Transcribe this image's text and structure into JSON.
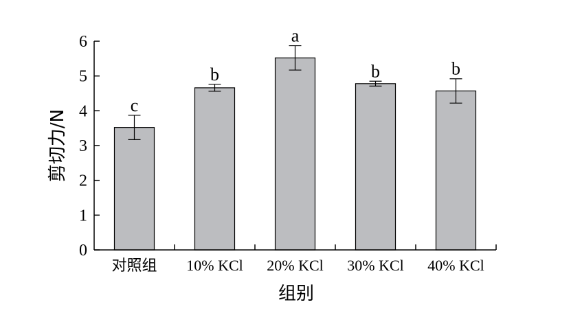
{
  "chart_data": {
    "type": "bar",
    "categories": [
      "对照组",
      "10% KCl",
      "20% KCl",
      "30% KCl",
      "40% KCl"
    ],
    "values": [
      3.52,
      4.66,
      5.52,
      4.78,
      4.57
    ],
    "error": [
      0.35,
      0.1,
      0.35,
      0.07,
      0.35
    ],
    "significance": [
      "c",
      "b",
      "a",
      "b",
      "b"
    ],
    "xlabel": "组别",
    "ylabel": "剪切力/N",
    "ylim": [
      0,
      6
    ],
    "yticks": [
      "0",
      "1",
      "2",
      "3",
      "4",
      "5",
      "6"
    ],
    "bar_color": "#bcbdc0",
    "grid": false,
    "legend": "none"
  }
}
